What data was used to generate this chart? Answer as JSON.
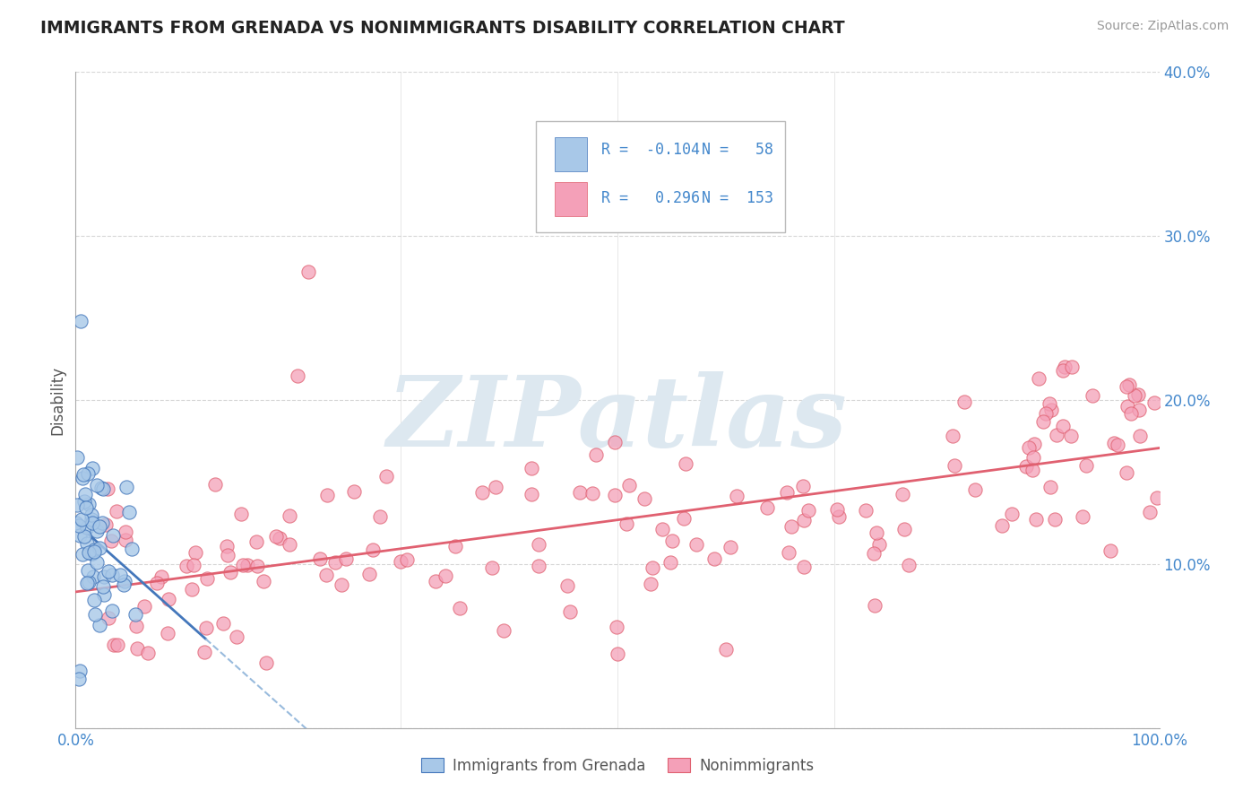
{
  "title": "IMMIGRANTS FROM GRENADA VS NONIMMIGRANTS DISABILITY CORRELATION CHART",
  "source": "Source: ZipAtlas.com",
  "ylabel": "Disability",
  "xlim": [
    0,
    1.0
  ],
  "ylim": [
    0,
    0.4
  ],
  "color_blue": "#a8c8e8",
  "color_pink": "#f4a0b8",
  "trend_blue_solid": "#4477bb",
  "trend_blue_dash": "#99bbdd",
  "trend_pink": "#e06070",
  "watermark": "ZIPatlas",
  "watermark_color": "#dde8f0",
  "background_color": "#ffffff",
  "grid_color": "#cccccc",
  "title_color": "#222222",
  "source_color": "#999999",
  "tick_color": "#4488cc",
  "ylabel_color": "#555555"
}
